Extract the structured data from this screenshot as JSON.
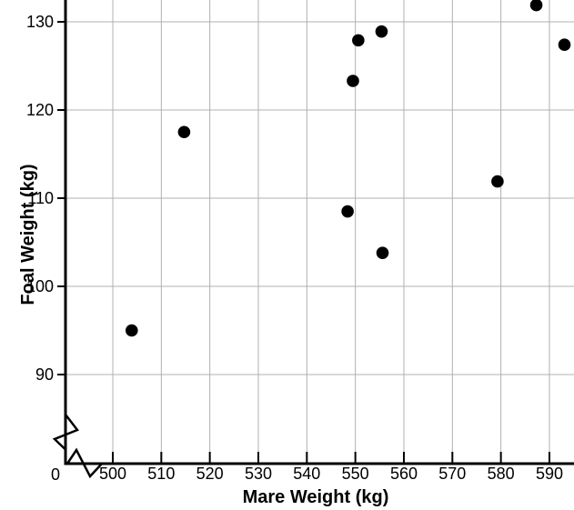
{
  "figure": {
    "title": "",
    "x_axis_title": "Mare Weight (kg)",
    "y_axis_title": "Foal Weight (kg)",
    "origin_label": "0"
  },
  "chart_data": {
    "type": "scatter",
    "title": "",
    "xlabel": "Mare Weight (kg)",
    "ylabel": "Foal Weight (kg)",
    "x_ticks": [
      500,
      510,
      520,
      530,
      540,
      550,
      560,
      570,
      580,
      590
    ],
    "y_ticks": [
      90,
      100,
      110,
      120,
      130
    ],
    "xlim": [
      500,
      595
    ],
    "ylim": [
      80,
      132.5
    ],
    "grid": true,
    "legend": false,
    "axis_breaks": {
      "x_axis": true,
      "y_axis": true,
      "origin_label": "0"
    },
    "points": [
      {
        "x": 503.9,
        "y": 95.0
      },
      {
        "x": 514.7,
        "y": 117.5
      },
      {
        "x": 548.4,
        "y": 108.5
      },
      {
        "x": 549.5,
        "y": 123.3
      },
      {
        "x": 550.6,
        "y": 127.9
      },
      {
        "x": 555.4,
        "y": 128.9
      },
      {
        "x": 555.6,
        "y": 103.8
      },
      {
        "x": 579.3,
        "y": 111.9
      },
      {
        "x": 587.3,
        "y": 131.9
      },
      {
        "x": 593.1,
        "y": 127.4
      }
    ]
  },
  "colors": {
    "background": "#ffffff",
    "point": "#000000",
    "axis": "#000000",
    "tick": "#000000",
    "grid": "#b0b0b0",
    "text": "#000000"
  }
}
